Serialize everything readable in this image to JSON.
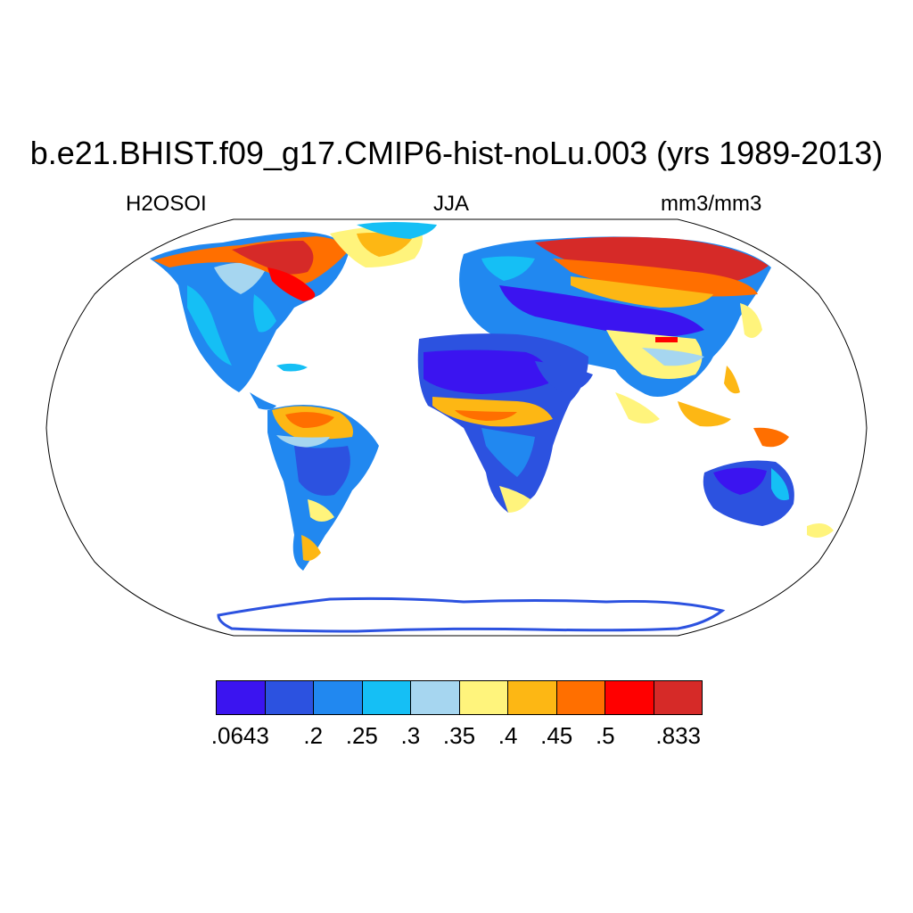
{
  "title": "b.e21.BHIST.f09_g17.CMIP6-hist-noLu.003 (yrs 1989-2013)",
  "subtitle_left": "H2OSOI",
  "subtitle_center": "JJA",
  "subtitle_right": "mm3/mm3",
  "colorbar": {
    "colors": [
      "#3b14f0",
      "#2c52e0",
      "#2188f0",
      "#15bff5",
      "#a6d6f0",
      "#fff47c",
      "#fdb714",
      "#ff6f00",
      "#ff0000",
      "#d62a28"
    ],
    "labels": [
      ".0643",
      ".2",
      ".25",
      ".3",
      ".35",
      ".4",
      ".45",
      ".5",
      ".833"
    ]
  },
  "map": {
    "projection": "Robinson",
    "background": "#ffffff",
    "ocean_masked": true
  }
}
